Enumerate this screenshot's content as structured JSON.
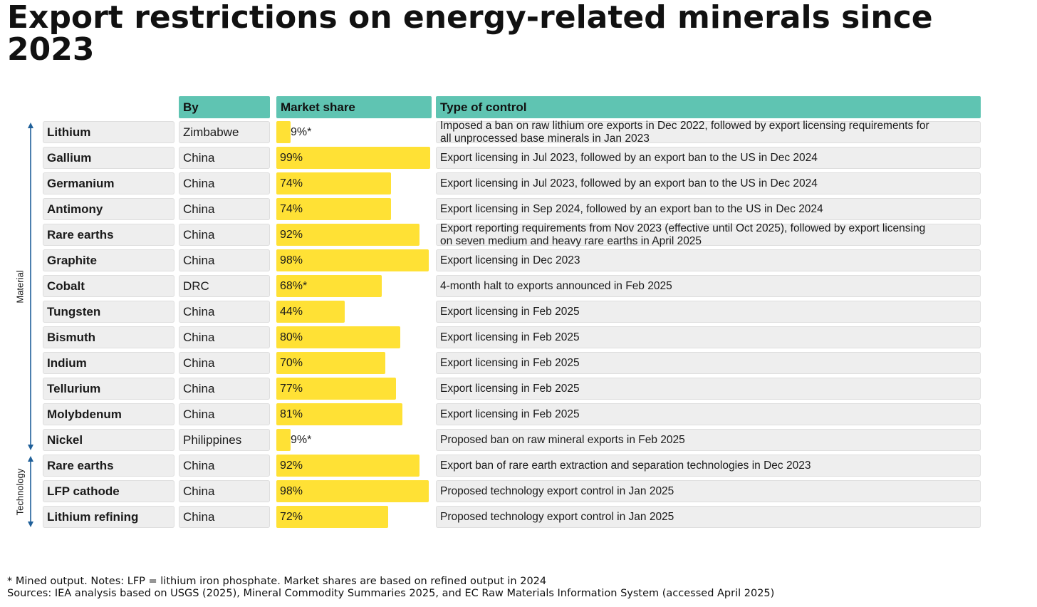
{
  "title": "Export restrictions on energy-related minerals since 2023",
  "colors": {
    "header": "#5fc4b2",
    "bar": "#ffe135",
    "cell": "#eeeeee",
    "arrow": "#1f5f99"
  },
  "headers": {
    "by": "By",
    "share": "Market share",
    "control": "Type of control"
  },
  "groups": [
    {
      "label": "Material",
      "from_row": 0,
      "to_row": 12
    },
    {
      "label": "Technology",
      "from_row": 13,
      "to_row": 15
    }
  ],
  "chart_data": {
    "type": "table",
    "title": "Export restrictions on energy-related minerals since 2023",
    "columns": [
      "By",
      "Market share",
      "Type of control"
    ],
    "value_range": [
      0,
      100
    ],
    "rows": [
      {
        "name": "Lithium",
        "by": "Zimbabwe",
        "share": 9,
        "share_label": "9%*",
        "control": "Imposed a ban on raw lithium ore exports in Dec 2022, followed by export licensing requirements for all unprocessed base minerals in Jan 2023"
      },
      {
        "name": "Gallium",
        "by": "China",
        "share": 99,
        "share_label": "99%",
        "control": "Export licensing in Jul 2023, followed by an export ban to the US in Dec 2024"
      },
      {
        "name": "Germanium",
        "by": "China",
        "share": 74,
        "share_label": "74%",
        "control": "Export licensing in Jul 2023, followed by an export ban to the US in Dec 2024"
      },
      {
        "name": "Antimony",
        "by": "China",
        "share": 74,
        "share_label": "74%",
        "control": "Export licensing in Sep 2024, followed by an export ban to the US in Dec 2024"
      },
      {
        "name": "Rare earths",
        "by": "China",
        "share": 92,
        "share_label": "92%",
        "control": "Export reporting requirements from Nov 2023 (effective until Oct 2025), followed by export licensing on seven medium and heavy rare earths in April 2025"
      },
      {
        "name": "Graphite",
        "by": "China",
        "share": 98,
        "share_label": "98%",
        "control": "Export licensing in Dec 2023"
      },
      {
        "name": "Cobalt",
        "by": "DRC",
        "share": 68,
        "share_label": "68%*",
        "control": "4-month halt to exports announced in Feb 2025"
      },
      {
        "name": "Tungsten",
        "by": "China",
        "share": 44,
        "share_label": "44%",
        "control": "Export licensing in Feb 2025"
      },
      {
        "name": "Bismuth",
        "by": "China",
        "share": 80,
        "share_label": "80%",
        "control": "Export licensing in Feb 2025"
      },
      {
        "name": "Indium",
        "by": "China",
        "share": 70,
        "share_label": "70%",
        "control": "Export licensing in Feb 2025"
      },
      {
        "name": "Tellurium",
        "by": "China",
        "share": 77,
        "share_label": "77%",
        "control": "Export licensing in Feb 2025"
      },
      {
        "name": "Molybdenum",
        "by": "China",
        "share": 81,
        "share_label": "81%",
        "control": "Export licensing in Feb 2025"
      },
      {
        "name": "Nickel",
        "by": "Philippines",
        "share": 9,
        "share_label": "9%*",
        "control": "Proposed ban on raw mineral exports in Feb 2025"
      },
      {
        "name": "Rare earths",
        "by": "China",
        "share": 92,
        "share_label": "92%",
        "control": "Export ban of rare earth extraction and separation technologies in Dec 2023"
      },
      {
        "name": "LFP cathode",
        "by": "China",
        "share": 98,
        "share_label": "98%",
        "control": "Proposed technology export control in Jan 2025"
      },
      {
        "name": "Lithium refining",
        "by": "China",
        "share": 72,
        "share_label": "72%",
        "control": "Proposed technology export control in Jan 2025"
      }
    ]
  },
  "notes": {
    "line1": "* Mined output. Notes: LFP = lithium iron phosphate. Market shares are based on refined output in 2024",
    "line2": "Sources: IEA analysis based on USGS (2025), Mineral Commodity Summaries 2025, and EC Raw Materials Information System (accessed April 2025)"
  }
}
